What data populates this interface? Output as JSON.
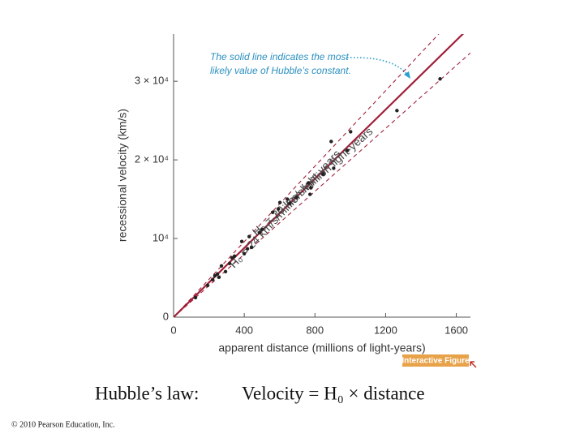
{
  "chart_data": {
    "type": "scatter",
    "x_label": "apparent distance (millions of light-years)",
    "y_label": "recessional velocity (km/s)",
    "xlim": [
      0,
      1680
    ],
    "ylim": [
      0,
      36000
    ],
    "xticks": [
      0,
      400,
      800,
      1200,
      1600
    ],
    "yticks": [
      0,
      {
        "value": 10000,
        "label": "10⁴"
      },
      {
        "value": 20000,
        "label": "2 × 10⁴"
      },
      {
        "value": 30000,
        "label": "3 × 10⁴"
      }
    ],
    "color": "#222222",
    "x": [
      124,
      193,
      221,
      234,
      248,
      257,
      271,
      294,
      317,
      331,
      345,
      386,
      400,
      418,
      428,
      441,
      487,
      501,
      561,
      593,
      602,
      644,
      657,
      694,
      763,
      772,
      777,
      846,
      906,
      892,
      984,
      1002,
      1264,
      1508
    ],
    "values": [
      2480,
      4030,
      4760,
      5270,
      5480,
      5070,
      6520,
      5790,
      6830,
      7550,
      7760,
      9620,
      8070,
      8690,
      10240,
      8890,
      10760,
      11170,
      13340,
      13750,
      14580,
      15000,
      14480,
      15200,
      17060,
      15620,
      16440,
      18200,
      18930,
      22340,
      21200,
      23580,
      26270,
      30300
    ],
    "lines": [
      {
        "slope": 22,
        "style": "solid",
        "color": "#a0203a"
      },
      {
        "slope": 24,
        "style": "dashed",
        "color": "#a0203a",
        "label": "H₀ = 24 km/s/million light-years"
      },
      {
        "slope": 20,
        "style": "dashed",
        "color": "#a0203a",
        "label": "H₀ = 20 km/s/million light-years"
      }
    ],
    "annotation": [
      "The solid line indicates the most",
      "likely value of Hubble’s constant."
    ],
    "badge": "Interactive Figure",
    "caption": {
      "label": "Hubble’s law:",
      "formula": "Velocity = H₀ × distance"
    },
    "copyright": "© 2010 Pearson Education, Inc."
  }
}
